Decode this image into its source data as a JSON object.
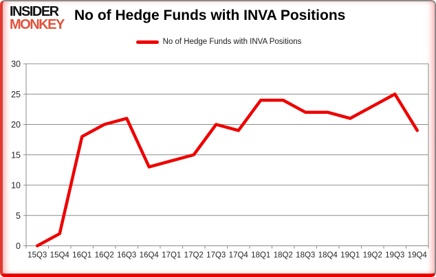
{
  "logo": {
    "line1": "INSIDER",
    "line2": "MONKEY",
    "line2_color": "#e0523c"
  },
  "header": {
    "title": "No of Hedge Funds with INVA Positions"
  },
  "legend": {
    "label": "No of Hedge Funds with INVA Positions",
    "swatch_color": "#ee0000"
  },
  "chart_data": {
    "type": "line",
    "title": "No of Hedge Funds with INVA Positions",
    "categories": [
      "15Q3",
      "15Q4",
      "16Q1",
      "16Q2",
      "16Q3",
      "16Q4",
      "17Q1",
      "17Q2",
      "17Q3",
      "17Q4",
      "18Q1",
      "18Q2",
      "18Q3",
      "18Q4",
      "19Q1",
      "19Q2",
      "19Q3",
      "19Q4"
    ],
    "values": [
      0,
      2,
      18,
      20,
      21,
      13,
      14,
      15,
      20,
      19,
      24,
      24,
      22,
      22,
      21,
      23,
      25,
      19
    ],
    "xlabel": "",
    "ylabel": "",
    "ylim": [
      0,
      30
    ],
    "ytick_step": 5,
    "grid": true,
    "legend_position": "top-center",
    "line_color": "#ee0000",
    "line_width": 4.5,
    "grid_color": "#8c8c8c",
    "tick_label_color": "#262626"
  }
}
